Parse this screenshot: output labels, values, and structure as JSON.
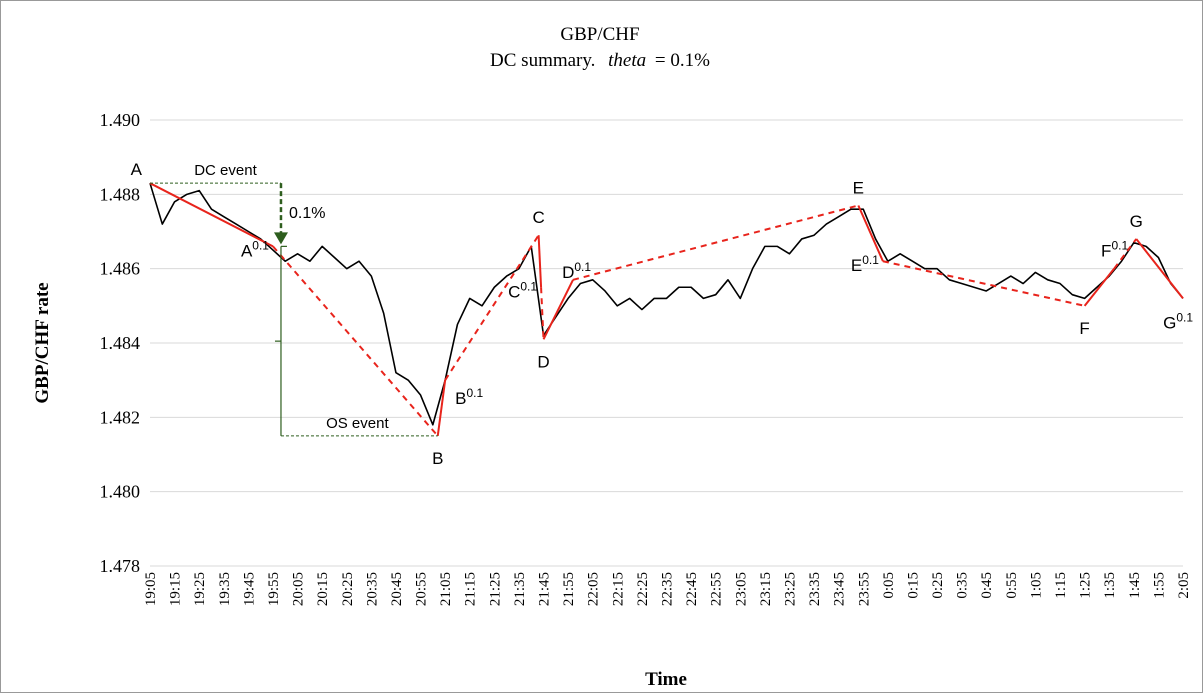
{
  "chart_data": {
    "type": "line",
    "title": "GBP/CHF",
    "subtitle_parts": [
      "DC summary.",
      "theta",
      "= 0.1%"
    ],
    "y_label": "GBP/CHF rate",
    "x_label": "Time",
    "ylim": [
      1.478,
      1.49
    ],
    "yticks": [
      1.478,
      {
        "value": 1.48,
        "label": "1.480"
      },
      1.482,
      1.484,
      1.486,
      1.488,
      {
        "value": 1.49,
        "label": "1.490"
      }
    ],
    "grid": true,
    "x": [
      "19:05",
      "19:10",
      "19:15",
      "19:20",
      "19:25",
      "19:30",
      "19:35",
      "19:40",
      "19:45",
      "19:50",
      "19:55",
      "20:00",
      "20:05",
      "20:10",
      "20:15",
      "20:20",
      "20:25",
      "20:30",
      "20:35",
      "20:40",
      "20:45",
      "20:50",
      "20:55",
      "21:00",
      "21:05",
      "21:10",
      "21:15",
      "21:20",
      "21:25",
      "21:30",
      "21:35",
      "21:40",
      "21:45",
      "21:50",
      "21:55",
      "22:00",
      "22:05",
      "22:10",
      "22:15",
      "22:20",
      "22:25",
      "22:30",
      "22:35",
      "22:40",
      "22:45",
      "22:50",
      "22:55",
      "23:00",
      "23:05",
      "23:10",
      "23:15",
      "23:20",
      "23:25",
      "23:30",
      "23:35",
      "23:40",
      "23:45",
      "23:50",
      "23:55",
      "0:00",
      "0:05",
      "0:10",
      "0:15",
      "0:20",
      "0:25",
      "0:30",
      "0:35",
      "0:40",
      "0:45",
      "0:50",
      "0:55",
      "1:00",
      "1:05",
      "1:10",
      "1:15",
      "1:20",
      "1:25",
      "1:30",
      "1:35",
      "1:40",
      "1:45",
      "1:50",
      "1:55",
      "2:00",
      "2:05"
    ],
    "series": [
      {
        "color": "#000000",
        "values": [
          1.4883,
          1.4872,
          1.4878,
          1.488,
          1.4881,
          1.4876,
          1.4874,
          1.4872,
          1.487,
          1.4868,
          1.4865,
          1.4862,
          1.4864,
          1.4862,
          1.4866,
          1.4863,
          1.486,
          1.4862,
          1.4858,
          1.4848,
          1.4832,
          1.483,
          1.4826,
          1.4818,
          1.483,
          1.4845,
          1.4852,
          1.485,
          1.4855,
          1.4858,
          1.486,
          1.4866,
          1.4842,
          1.4847,
          1.4852,
          1.4856,
          1.4857,
          1.4854,
          1.485,
          1.4852,
          1.4849,
          1.4852,
          1.4852,
          1.4855,
          1.4855,
          1.4852,
          1.4853,
          1.4857,
          1.4852,
          1.486,
          1.4866,
          1.4866,
          1.4864,
          1.4868,
          1.4869,
          1.4872,
          1.4874,
          1.4876,
          1.4876,
          1.4868,
          1.4862,
          1.4864,
          1.4862,
          1.486,
          1.486,
          1.4857,
          1.4856,
          1.4855,
          1.4854,
          1.4856,
          1.4858,
          1.4856,
          1.4859,
          1.4857,
          1.4856,
          1.4853,
          1.4852,
          1.4855,
          1.4858,
          1.4862,
          1.4867,
          1.4866,
          1.4863,
          1.4856,
          1.4852
        ]
      }
    ],
    "dc_color": "#e8241c",
    "dc_points": [
      {
        "label": "A",
        "x": "19:05",
        "value": 1.4883
      },
      {
        "label": "A",
        "sup": "0.1",
        "x": "19:55",
        "value": 1.4866
      },
      {
        "label": "B",
        "x": "21:02",
        "value": 1.4815
      },
      {
        "label": "B",
        "sup": "0.1",
        "x": "21:05",
        "value": 1.483
      },
      {
        "label": "C",
        "x": "21:43",
        "value": 1.4869
      },
      {
        "label": "C",
        "sup": "0.1",
        "x": "21:44",
        "value": 1.4855
      },
      {
        "label": "D",
        "x": "21:45",
        "value": 1.4841
      },
      {
        "label": "D",
        "sup": "0.1",
        "x": "21:57",
        "value": 1.4857
      },
      {
        "label": "E",
        "x": "23:53",
        "value": 1.4877
      },
      {
        "label": "E",
        "sup": "0.1",
        "x": "0:03",
        "value": 1.4862
      },
      {
        "label": "F",
        "x": "1:25",
        "value": 1.485
      },
      {
        "label": "F",
        "sup": "0.1",
        "x": "1:37",
        "value": 1.486
      },
      {
        "label": "G",
        "x": "1:46",
        "value": 1.4868
      },
      {
        "label": "G",
        "sup": "0.1",
        "x": "2:05",
        "value": 1.4852
      }
    ],
    "annotations": {
      "dc_event": "DC event",
      "threshold": "0.1%",
      "os_event": "OS event"
    },
    "annotation_color": "#2e5e1e"
  }
}
